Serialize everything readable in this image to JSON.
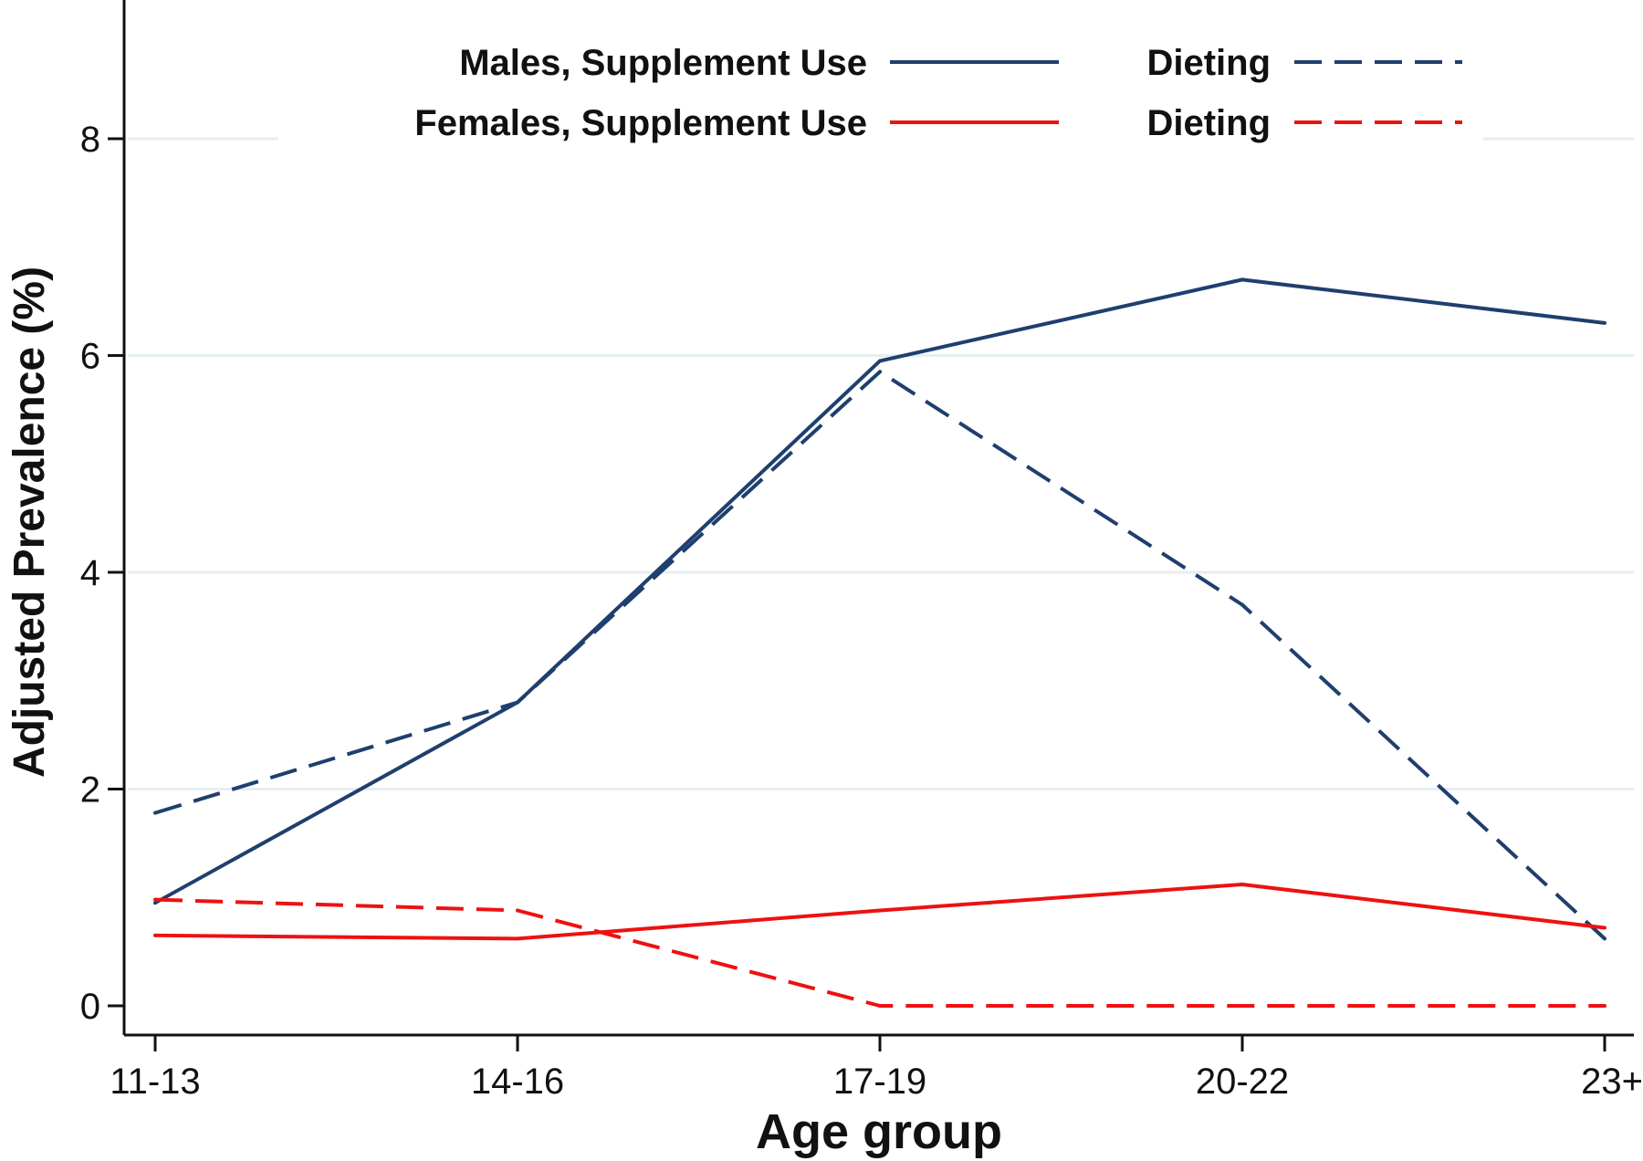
{
  "chart_data": {
    "type": "line",
    "title": "",
    "xlabel": "Age group",
    "ylabel": "Adjusted Prevalence (%)",
    "categories": [
      "11-13",
      "14-16",
      "17-19",
      "20-22",
      "23+"
    ],
    "ylim": [
      -0.5,
      9.2
    ],
    "yticks": [
      0,
      2,
      4,
      6,
      8
    ],
    "grid": true,
    "legend_position": "top",
    "series": [
      {
        "name": "Males, Supplement Use",
        "legend_label": "Males, Supplement Use",
        "color": "#1f3f6e",
        "dash": "solid",
        "values": [
          0.95,
          2.8,
          5.95,
          6.7,
          6.3
        ]
      },
      {
        "name": "Males, Dieting",
        "legend_label": "Dieting",
        "color": "#1f3f6e",
        "dash": "dashed",
        "values": [
          1.78,
          2.8,
          5.85,
          3.7,
          0.62
        ]
      },
      {
        "name": "Females, Supplement Use",
        "legend_label": "Females, Supplement Use",
        "color": "#ee1111",
        "dash": "solid",
        "values": [
          0.65,
          0.62,
          0.88,
          1.12,
          0.72
        ]
      },
      {
        "name": "Females, Dieting",
        "legend_label": "Dieting",
        "color": "#ee1111",
        "dash": "dashed",
        "values": [
          0.98,
          0.88,
          0.0,
          0.0,
          0.0
        ]
      }
    ]
  }
}
